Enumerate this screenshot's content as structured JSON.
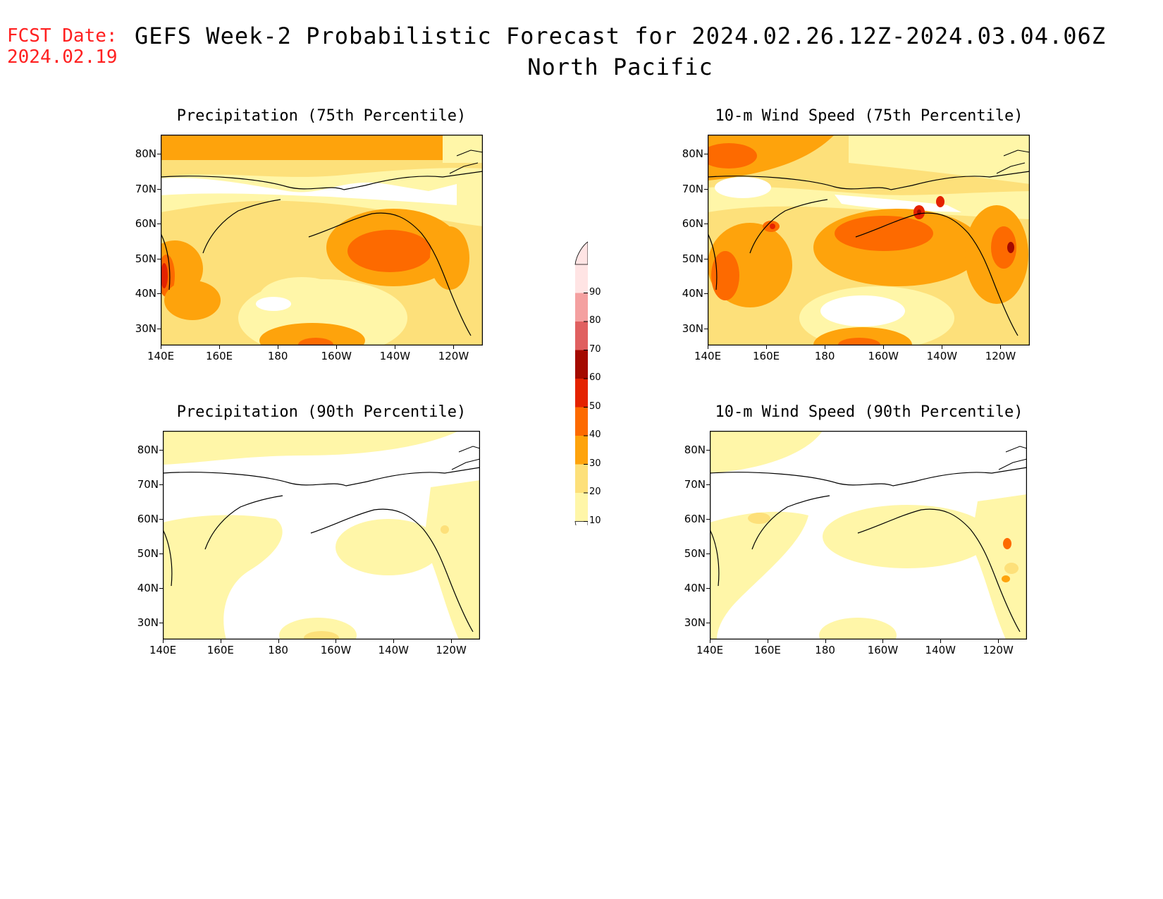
{
  "header": {
    "fcst_label": "FCST Date:",
    "fcst_date": "2024.02.19",
    "title": "GEFS Week-2 Probabilistic Forecast for 2024.02.26.12Z-2024.03.04.06Z",
    "subtitle": "North Pacific"
  },
  "panels": [
    {
      "title": "Precipitation (75th Percentile)"
    },
    {
      "title": "10-m Wind Speed (75th Percentile)"
    },
    {
      "title": "Precipitation (90th Percentile)"
    },
    {
      "title": "10-m Wind Speed (90th Percentile)"
    }
  ],
  "axes": {
    "lat_labels": [
      "80N",
      "70N",
      "60N",
      "50N",
      "40N",
      "30N"
    ],
    "lon_labels": [
      "140E",
      "160E",
      "180",
      "160W",
      "140W",
      "120W"
    ]
  },
  "colorbar": {
    "levels": [
      "10",
      "20",
      "30",
      "40",
      "50",
      "60",
      "70",
      "80",
      "90"
    ],
    "colors": [
      "#fff6a8",
      "#fde07a",
      "#fea30c",
      "#fd6a00",
      "#e42200",
      "#a40a00",
      "#e06060",
      "#f4a0a0",
      "#ffe4e4"
    ]
  }
}
